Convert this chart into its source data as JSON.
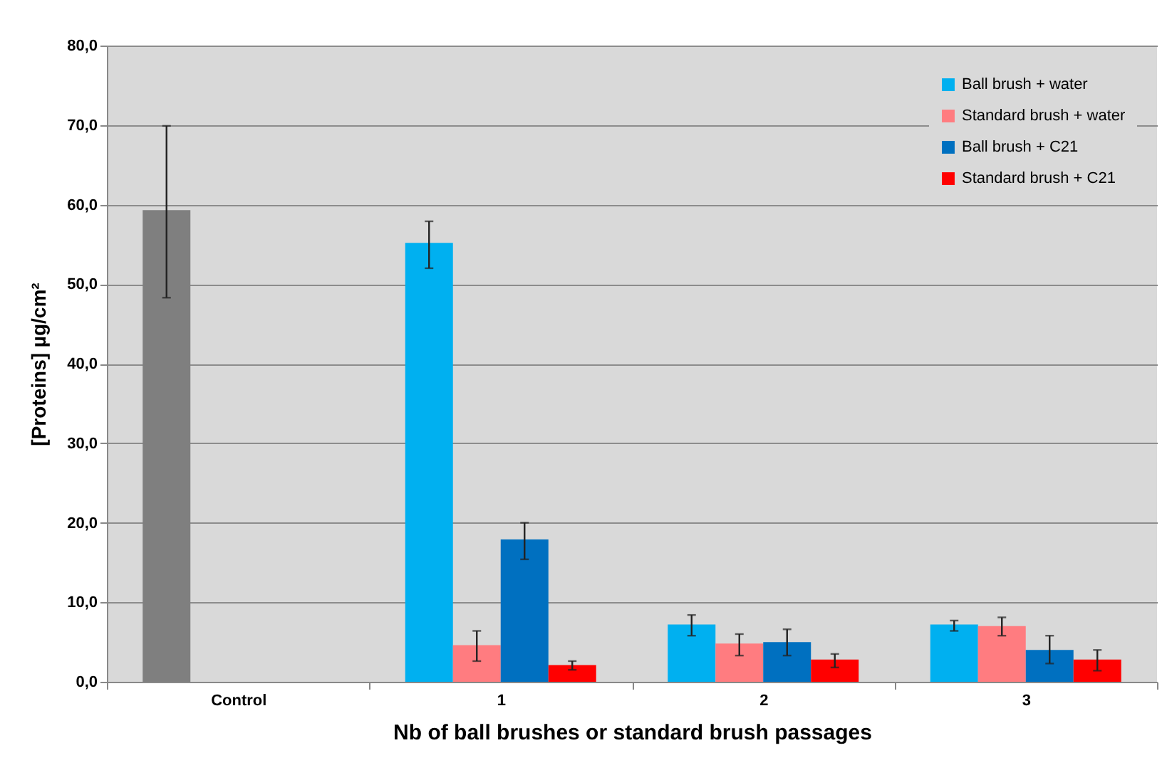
{
  "chart_data": {
    "type": "bar",
    "xlabel": "Nb of ball brushes or standard brush passages",
    "ylabel": "[Proteins] µg/cm²",
    "categories": [
      "Control",
      "1",
      "2",
      "3"
    ],
    "series": [
      {
        "color": "#7f7f7f",
        "values": [
          59.3,
          null,
          null,
          null
        ],
        "errors": [
          [
            48.3,
            69.9
          ],
          null,
          null,
          null
        ]
      },
      {
        "name": "Ball brush + water",
        "color": "#00b0f0",
        "values": [
          null,
          55.2,
          7.2,
          7.2
        ],
        "errors": [
          null,
          [
            52.0,
            57.9
          ],
          [
            5.8,
            8.4
          ],
          [
            6.4,
            7.7
          ]
        ]
      },
      {
        "name": "Standard brush + water",
        "color": "#ff7c80",
        "values": [
          null,
          4.6,
          4.8,
          7.0
        ],
        "errors": [
          null,
          [
            2.6,
            6.4
          ],
          [
            3.3,
            6.0
          ],
          [
            5.8,
            8.1
          ]
        ]
      },
      {
        "name": "Ball brush + C21",
        "color": "#0070c0",
        "values": [
          null,
          17.9,
          5.0,
          4.0
        ],
        "errors": [
          null,
          [
            15.4,
            20.0
          ],
          [
            3.3,
            6.6
          ],
          [
            2.3,
            5.8
          ]
        ]
      },
      {
        "name": "Standard brush + C21",
        "color": "#ff0000",
        "values": [
          null,
          2.1,
          2.8,
          2.8
        ],
        "errors": [
          null,
          [
            1.5,
            2.6
          ],
          [
            1.8,
            3.5
          ],
          [
            1.4,
            4.0
          ]
        ]
      }
    ],
    "ylim": [
      0,
      80
    ],
    "yticks": [
      {
        "value": 0,
        "label": "0,0"
      },
      {
        "value": 10,
        "label": "10,0"
      },
      {
        "value": 20,
        "label": "20,0"
      },
      {
        "value": 30,
        "label": "30,0"
      },
      {
        "value": 40,
        "label": "40,0"
      },
      {
        "value": 50,
        "label": "50,0"
      },
      {
        "value": 60,
        "label": "60,0"
      },
      {
        "value": 70,
        "label": "70,0"
      },
      {
        "value": 80,
        "label": "80,0"
      }
    ],
    "grid": "y",
    "legend": "top right"
  }
}
